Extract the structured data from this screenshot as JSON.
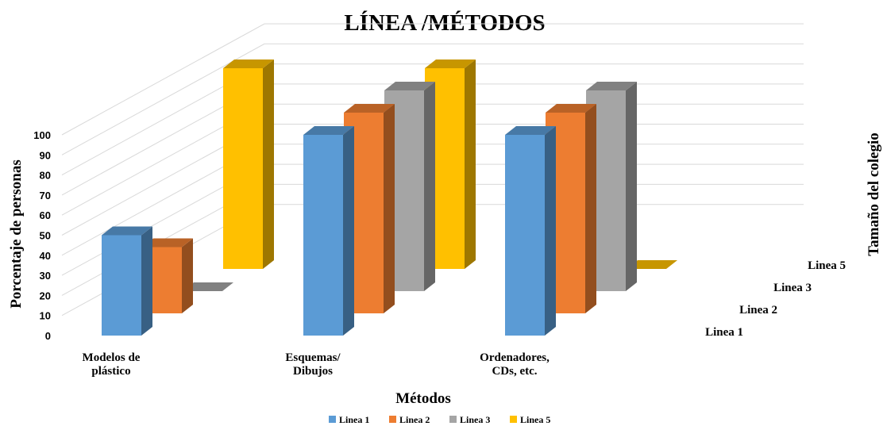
{
  "chart_data": {
    "type": "bar",
    "subtype": "3d-column",
    "title": "LÍNEA /MÉTODOS",
    "xlabel": "Métodos",
    "ylabel": "Porcentaje de personas",
    "zlabel": "Tamaño del colegio",
    "ylim": [
      0,
      100
    ],
    "yticks": [
      "0",
      "10",
      "20",
      "30",
      "40",
      "50",
      "60",
      "70",
      "80",
      "90",
      "100"
    ],
    "categories": [
      [
        "Modelos de",
        "plástico"
      ],
      [
        "Esquemas/",
        "Dibujos"
      ],
      [
        "Ordenadores,",
        "CDs, etc."
      ]
    ],
    "series": [
      {
        "name": "Linea 1",
        "color": "#5B9BD5",
        "values": [
          50,
          100,
          100
        ]
      },
      {
        "name": "Linea 2",
        "color": "#ED7D31",
        "values": [
          33,
          100,
          100
        ]
      },
      {
        "name": "Linea 3",
        "color": "#A5A5A5",
        "values": [
          0,
          100,
          100
        ]
      },
      {
        "name": "Linea 5",
        "color": "#FFC000",
        "values": [
          100,
          100,
          0
        ]
      }
    ],
    "grid": true,
    "legend": "bottom"
  }
}
